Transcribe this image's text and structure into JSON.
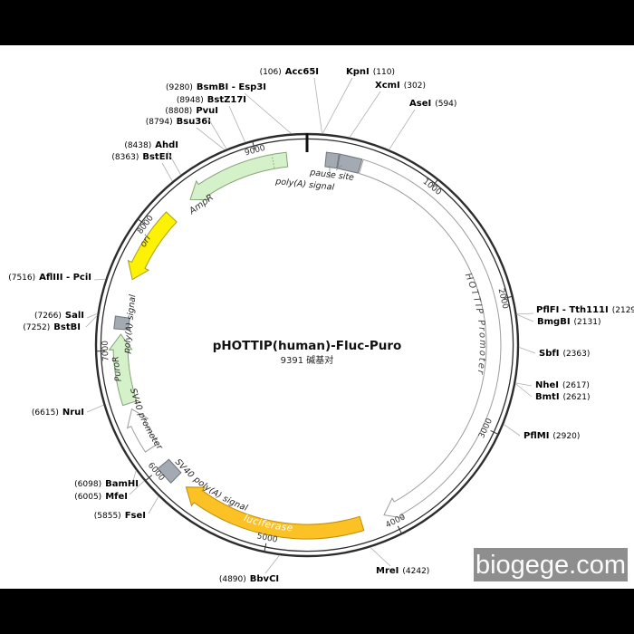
{
  "figure": {
    "title": "pHOTTIP(human)-Fluc-Puro",
    "subtitle": "9391 碱基对",
    "length_bp": 9391
  },
  "watermark": {
    "text": "biogege.com"
  },
  "ticks": [
    {
      "bp": 1000,
      "label": "1000"
    },
    {
      "bp": 2000,
      "label": "2000"
    },
    {
      "bp": 3000,
      "label": "3000"
    },
    {
      "bp": 4000,
      "label": "4000"
    },
    {
      "bp": 5000,
      "label": "5000"
    },
    {
      "bp": 6000,
      "label": "6000"
    },
    {
      "bp": 7000,
      "label": "7000"
    },
    {
      "bp": 8000,
      "label": "8000"
    },
    {
      "bp": 9000,
      "label": "9000"
    }
  ],
  "colors": {
    "ring": "#2d2d2d",
    "green": {
      "fill": "#d5f1c9",
      "stroke": "#85a47a"
    },
    "yellow": {
      "fill": "#fdf203",
      "stroke": "#a3a024"
    },
    "orange": {
      "fill": "#fcc125",
      "stroke": "#bf8f07"
    },
    "white": {
      "fill": "#ffffff",
      "stroke": "#9c9c9c"
    },
    "gray": {
      "fill": "#a4aab2",
      "stroke": "#70767c"
    },
    "leader": "#b0b0b0",
    "watermark_bg": "#8e8e8e"
  },
  "features": [
    {
      "name": "poly(A) signal",
      "type": "box",
      "start": 150,
      "end": 248,
      "color": "gray"
    },
    {
      "name": "pause site",
      "type": "box",
      "start": 255,
      "end": 430,
      "color": "gray"
    },
    {
      "name": "HOTTIP Promoter",
      "type": "arrow",
      "start": 440,
      "end": 4060,
      "direction": "cw",
      "color": "white"
    },
    {
      "name": "luciferase",
      "type": "arrow",
      "start": 4250,
      "end": 5750,
      "direction": "cw",
      "color": "orange"
    },
    {
      "name": "SV40 poly(A) signal",
      "type": "box",
      "start": 5860,
      "end": 6010,
      "color": "gray"
    },
    {
      "name": "SV40 promoter",
      "type": "arrow",
      "start": 6170,
      "end": 6520,
      "direction": "cw",
      "color": "white"
    },
    {
      "name": "PuroR",
      "type": "arrow",
      "start": 6570,
      "end": 7130,
      "direction": "cw",
      "color": "green"
    },
    {
      "name": "poly(A) signal",
      "type": "box",
      "start": 7170,
      "end": 7268,
      "color": "gray"
    },
    {
      "name": "ori",
      "type": "arrow",
      "start": 7580,
      "end": 8175,
      "direction": "ccw",
      "color": "yellow"
    },
    {
      "name": "AmpR",
      "type": "arrow",
      "start": 8380,
      "end": 9230,
      "direction": "ccw",
      "color": "green",
      "divider_bp": 9118
    }
  ],
  "enzymes": [
    {
      "name": "Acc65I",
      "bp": 106,
      "pos_text": "(106)",
      "order": "pos-first"
    },
    {
      "name": "KpnI",
      "bp": 110,
      "pos_text": "(110)",
      "order": "name-first"
    },
    {
      "name": "XcmI",
      "bp": 302,
      "pos_text": "(302)",
      "order": "name-first"
    },
    {
      "name": "AseI",
      "bp": 594,
      "pos_text": "(594)",
      "order": "name-first"
    },
    {
      "name": "PflFI - Tth111I",
      "bp": 2129,
      "pos_text": "(2129)",
      "order": "name-first"
    },
    {
      "name": "BmgBI",
      "bp": 2131,
      "pos_text": "(2131)",
      "order": "name-first"
    },
    {
      "name": "SbfI",
      "bp": 2363,
      "pos_text": "(2363)",
      "order": "name-first"
    },
    {
      "name": "NheI",
      "bp": 2617,
      "pos_text": "(2617)",
      "order": "name-first"
    },
    {
      "name": "BmtI",
      "bp": 2621,
      "pos_text": "(2621)",
      "order": "name-first"
    },
    {
      "name": "PflMI",
      "bp": 2920,
      "pos_text": "(2920)",
      "order": "name-first"
    },
    {
      "name": "MreI",
      "bp": 4242,
      "pos_text": "(4242)",
      "order": "name-first"
    },
    {
      "name": "BbvCI",
      "bp": 4890,
      "pos_text": "(4890)",
      "order": "pos-first"
    },
    {
      "name": "FseI",
      "bp": 5855,
      "pos_text": "(5855)",
      "order": "pos-first"
    },
    {
      "name": "MfeI",
      "bp": 6005,
      "pos_text": "(6005)",
      "order": "pos-first"
    },
    {
      "name": "BamHI",
      "bp": 6098,
      "pos_text": "(6098)",
      "order": "pos-first"
    },
    {
      "name": "NruI",
      "bp": 6615,
      "pos_text": "(6615)",
      "order": "pos-first"
    },
    {
      "name": "BstBI",
      "bp": 7252,
      "pos_text": "(7252)",
      "order": "pos-first"
    },
    {
      "name": "SalI",
      "bp": 7266,
      "pos_text": "(7266)",
      "order": "pos-first"
    },
    {
      "name": "AflIII - PciI",
      "bp": 7516,
      "pos_text": "(7516)",
      "order": "pos-first"
    },
    {
      "name": "BstEII",
      "bp": 8363,
      "pos_text": "(8363)",
      "order": "pos-first"
    },
    {
      "name": "AhdI",
      "bp": 8438,
      "pos_text": "(8438)",
      "order": "pos-first"
    },
    {
      "name": "Bsu36I",
      "bp": 8794,
      "pos_text": "(8794)",
      "order": "pos-first"
    },
    {
      "name": "PvuI",
      "bp": 8808,
      "pos_text": "(8808)",
      "order": "pos-first"
    },
    {
      "name": "BstZ17I",
      "bp": 8948,
      "pos_text": "(8948)",
      "order": "pos-first"
    },
    {
      "name": "BsmBI - Esp3I",
      "bp": 9280,
      "pos_text": "(9280)",
      "order": "pos-first"
    }
  ]
}
